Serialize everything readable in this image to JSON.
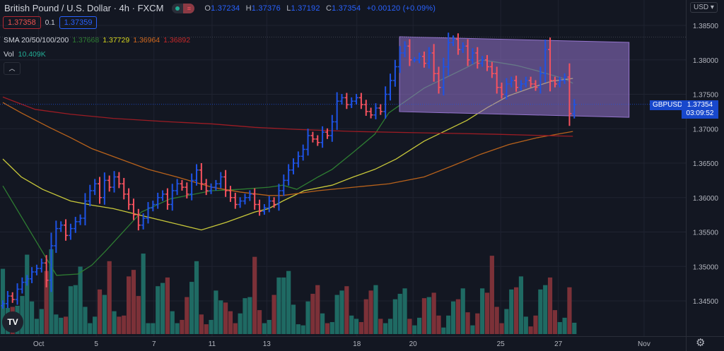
{
  "header": {
    "title": "British Pound / U.S. Dollar · 4h · FXCM",
    "ohlc": {
      "o_label": "O",
      "o": "1.37234",
      "h_label": "H",
      "h": "1.37376",
      "l_label": "L",
      "l": "1.37192",
      "c_label": "C",
      "c": "1.37354",
      "change": "+0.00120 (+0.09%)"
    },
    "sell_price": "1.37358",
    "spread": "0.1",
    "buy_price": "1.37359"
  },
  "indicators": {
    "sma_label": "SMA 20/50/100/200",
    "sma20": "1.37668",
    "sma50": "1.37729",
    "sma100": "1.36964",
    "sma200": "1.36892",
    "vol_label": "Vol",
    "vol_value": "10.409K",
    "collapse_icon": "chevron-up-icon"
  },
  "price_axis": {
    "currency": "USD",
    "symbol": "GBPUSD",
    "last_price": "1.37354",
    "countdown": "03:09:52"
  },
  "colors": {
    "up": "#1e53e5",
    "down": "#f7525f",
    "vol_up": "#1f6a63",
    "vol_down": "#7c3138",
    "sma20": "#2e7d32",
    "sma50": "#c8c83a",
    "sma100": "#b8621b",
    "sma200": "#9c1c24",
    "channel": "#9575cd",
    "background": "#131722"
  },
  "chart_data": {
    "type": "ohlc-bar",
    "ylim": [
      1.3415,
      1.3885
    ],
    "y_ticks": [
      "1.38500",
      "1.38000",
      "1.37500",
      "1.37000",
      "1.36500",
      "1.36000",
      "1.35500",
      "1.35000",
      "1.34500"
    ],
    "x_ticks": [
      {
        "label": "Oct",
        "bar": 7.4
      },
      {
        "label": "5",
        "bar": 19.3
      },
      {
        "label": "7",
        "bar": 31.2
      },
      {
        "label": "11",
        "bar": 43.2
      },
      {
        "label": "13",
        "bar": 54.5
      },
      {
        "label": "18",
        "bar": 73.1
      },
      {
        "label": "20",
        "bar": 84.7
      },
      {
        "label": "25",
        "bar": 102.8
      },
      {
        "label": "27",
        "bar": 114.7
      },
      {
        "label": "Nov",
        "bar": 132.4
      }
    ],
    "closes": [
      1.3446,
      1.3457,
      1.3452,
      1.3467,
      1.3477,
      1.3482,
      1.3492,
      1.3497,
      1.3505,
      1.348,
      1.353,
      1.3555,
      1.356,
      1.3545,
      1.3555,
      1.3565,
      1.357,
      1.3595,
      1.361,
      1.362,
      1.36,
      1.3625,
      1.3615,
      1.363,
      1.362,
      1.3605,
      1.359,
      1.3575,
      1.356,
      1.357,
      1.3585,
      1.359,
      1.36,
      1.3605,
      1.359,
      1.361,
      1.362,
      1.3615,
      1.3605,
      1.3625,
      1.364,
      1.362,
      1.361,
      1.3615,
      1.362,
      1.363,
      1.361,
      1.36,
      1.359,
      1.3595,
      1.36,
      1.3605,
      1.359,
      1.358,
      1.3585,
      1.3595,
      1.359,
      1.361,
      1.3625,
      1.364,
      1.365,
      1.366,
      1.367,
      1.369,
      1.3685,
      1.368,
      1.3695,
      1.369,
      1.371,
      1.374,
      1.3745,
      1.3735,
      1.374,
      1.3745,
      1.3735,
      1.3725,
      1.372,
      1.373,
      1.3725,
      1.375,
      1.377,
      1.379,
      1.381,
      1.382,
      1.38,
      1.38,
      1.3805,
      1.3795,
      1.381,
      1.378,
      1.376,
      1.379,
      1.3825,
      1.383,
      1.3815,
      1.382,
      1.38,
      1.381,
      1.3795,
      1.38,
      1.379,
      1.378,
      1.376,
      1.375,
      1.3765,
      1.377,
      1.376,
      1.3765,
      1.377,
      1.3765,
      1.376,
      1.378,
      1.3815,
      1.377,
      1.3765,
      1.377,
      1.3775,
      1.3722,
      1.3735
    ],
    "volume_k": [
      60,
      24,
      25,
      26,
      35,
      73,
      30,
      14,
      23,
      58,
      78,
      18,
      15,
      16,
      44,
      45,
      62,
      25,
      10,
      16,
      41,
      36,
      67,
      21,
      16,
      17,
      53,
      59,
      35,
      74,
      10,
      10,
      44,
      47,
      52,
      21,
      10,
      13,
      34,
      48,
      67,
      18,
      9,
      13,
      40,
      31,
      29,
      21,
      10,
      19,
      33,
      34,
      71,
      22,
      10,
      13,
      36,
      52,
      52,
      58,
      27,
      9,
      8,
      30,
      37,
      45,
      19,
      10,
      11,
      36,
      40,
      44,
      17,
      14,
      11,
      32,
      40,
      45,
      14,
      10,
      14,
      32,
      37,
      42,
      14,
      8,
      15,
      33,
      34,
      38,
      17,
      6,
      17,
      30,
      32,
      42,
      20,
      8,
      19,
      42,
      38,
      72,
      25,
      10,
      23,
      41,
      43,
      53,
      16,
      7,
      17,
      41,
      45,
      52,
      22,
      11,
      15,
      43,
      10.409
    ],
    "sma": [
      {
        "name": "SMA 20",
        "color_key": "sma20",
        "points": [
          [
            0,
            1.3617
          ],
          [
            11.1,
            1.3487
          ],
          [
            15.5,
            1.3489
          ],
          [
            18.4,
            1.3502
          ],
          [
            21.3,
            1.3523
          ],
          [
            28.6,
            1.3579
          ],
          [
            34.5,
            1.3598
          ],
          [
            43.2,
            1.361
          ],
          [
            49,
            1.3612
          ],
          [
            54.9,
            1.3615
          ],
          [
            57.8,
            1.3618
          ],
          [
            60.7,
            1.3612
          ],
          [
            65.1,
            1.363
          ],
          [
            68,
            1.3641
          ],
          [
            72.4,
            1.3666
          ],
          [
            76.8,
            1.3692
          ],
          [
            79.7,
            1.3723
          ],
          [
            87,
            1.3759
          ],
          [
            91.4,
            1.3774
          ],
          [
            95.8,
            1.3789
          ],
          [
            98.7,
            1.38
          ],
          [
            101.6,
            1.3797
          ],
          [
            106,
            1.3792
          ],
          [
            110.4,
            1.3784
          ],
          [
            116.2,
            1.3772
          ],
          [
            117.7,
            1.3766
          ]
        ]
      },
      {
        "name": "SMA 50",
        "color_key": "sma50",
        "points": [
          [
            0,
            1.3656
          ],
          [
            3.8,
            1.363
          ],
          [
            8.2,
            1.3612
          ],
          [
            14,
            1.3595
          ],
          [
            18.4,
            1.3589
          ],
          [
            22.8,
            1.3584
          ],
          [
            28.6,
            1.3574
          ],
          [
            34.5,
            1.3564
          ],
          [
            41,
            1.3553
          ],
          [
            46.1,
            1.3564
          ],
          [
            52,
            1.3579
          ],
          [
            54.9,
            1.3584
          ],
          [
            57.8,
            1.3595
          ],
          [
            62.2,
            1.361
          ],
          [
            68,
            1.3618
          ],
          [
            72.4,
            1.363
          ],
          [
            76.8,
            1.3641
          ],
          [
            81.2,
            1.3656
          ],
          [
            87,
            1.3682
          ],
          [
            91.4,
            1.3697
          ],
          [
            95.8,
            1.3712
          ],
          [
            100.1,
            1.3731
          ],
          [
            104.5,
            1.3748
          ],
          [
            108.9,
            1.3759
          ],
          [
            113.3,
            1.3769
          ],
          [
            117.7,
            1.3773
          ]
        ]
      },
      {
        "name": "SMA 100",
        "color_key": "sma100",
        "points": [
          [
            0,
            1.3738
          ],
          [
            3.8,
            1.3723
          ],
          [
            9.6,
            1.3702
          ],
          [
            14,
            1.3687
          ],
          [
            18.4,
            1.3671
          ],
          [
            24.2,
            1.3656
          ],
          [
            30,
            1.3641
          ],
          [
            35.9,
            1.363
          ],
          [
            43.2,
            1.3615
          ],
          [
            49,
            1.3608
          ],
          [
            54.9,
            1.3603
          ],
          [
            57.8,
            1.3603
          ],
          [
            65.1,
            1.361
          ],
          [
            72.4,
            1.3615
          ],
          [
            79.7,
            1.362
          ],
          [
            87,
            1.363
          ],
          [
            92.8,
            1.3646
          ],
          [
            98.7,
            1.3663
          ],
          [
            104.5,
            1.3677
          ],
          [
            110.4,
            1.3687
          ],
          [
            117.7,
            1.3696
          ]
        ]
      },
      {
        "name": "SMA 200",
        "color_key": "sma200",
        "points": [
          [
            0,
            1.3746
          ],
          [
            6.7,
            1.3728
          ],
          [
            14,
            1.3721
          ],
          [
            22.8,
            1.3715
          ],
          [
            34.5,
            1.371
          ],
          [
            43.2,
            1.3707
          ],
          [
            52,
            1.3702
          ],
          [
            60.7,
            1.3699
          ],
          [
            72.4,
            1.3696
          ],
          [
            87,
            1.3694
          ],
          [
            101.6,
            1.3692
          ],
          [
            117.7,
            1.3689
          ]
        ]
      }
    ],
    "channel": {
      "corners": [
        [
          81.9,
          1.38336
        ],
        [
          129.3,
          1.38254
        ],
        [
          129.3,
          1.37166
        ],
        [
          81.9,
          1.37248
        ]
      ]
    },
    "last_price": 1.37354,
    "grid": true
  }
}
